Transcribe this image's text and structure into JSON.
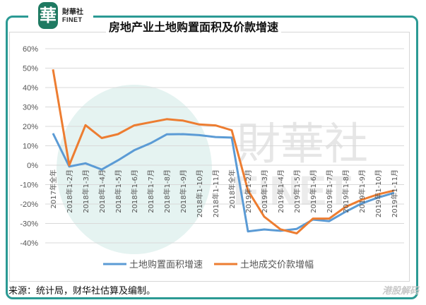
{
  "header": {
    "logo_glyph": "華",
    "brand_cn": "財華社",
    "brand_en": "FINET",
    "title": "房地产业土地购置面积及价款增速"
  },
  "footer": {
    "source": "来源：统计局，财华社估算及编制。",
    "corner_watermark": "港股解码"
  },
  "watermark": {
    "text_cn": "財華社",
    "text_en": "FINET"
  },
  "colors": {
    "frame": "#2b9a94",
    "series_blue": "#5b9bd5",
    "series_orange": "#ed7d31",
    "grid": "#d9d9d9"
  },
  "chart_data": {
    "type": "line",
    "title": "房地产业土地购置面积及价款增速",
    "xlabel": "",
    "ylabel": "",
    "ylim": [
      -40,
      60
    ],
    "yticks": [
      60,
      50,
      40,
      30,
      20,
      10,
      0,
      -10,
      -20,
      -30,
      -40
    ],
    "ytick_labels": [
      "60%",
      "50%",
      "40%",
      "30%",
      "20%",
      "10%",
      "0%",
      "-10%",
      "-20%",
      "-30%",
      "-40%"
    ],
    "grid": true,
    "legend_position": "bottom",
    "categories": [
      "2017年全年",
      "2018年1-2月",
      "2018年1-3月",
      "2018年1-4月",
      "2018年1-5月",
      "2018年1-6月",
      "2018年1-7月",
      "2018年1-8月",
      "2018年1-9月",
      "2018年1-10月",
      "2018年1-11月",
      "2018年全年",
      "2019年1-2月",
      "2019年1-3月",
      "2019年1-4月",
      "2019年1-5月",
      "2019年1-6月",
      "2019年1-7月",
      "2019年1-8月",
      "2019年1-9月",
      "2019年1-10月",
      "2019年1-11月"
    ],
    "series": [
      {
        "name": "土地购置面积增速",
        "color": "#5b9bd5",
        "values": [
          16.4,
          -0.7,
          1.0,
          -2.2,
          2.5,
          7.7,
          11.3,
          15.9,
          16.0,
          15.5,
          14.5,
          14.2,
          -34.1,
          -33.1,
          -33.8,
          -32.8,
          -28.0,
          -28.8,
          -24.0,
          -19.7,
          -16.7,
          -14.2
        ]
      },
      {
        "name": "土地成交价款增幅",
        "color": "#ed7d31",
        "values": [
          49.4,
          0.0,
          20.6,
          14.0,
          16.0,
          20.5,
          22.1,
          23.7,
          23.0,
          21.0,
          20.5,
          18.0,
          -13.0,
          -26.5,
          -33.0,
          -35.1,
          -27.5,
          -27.5,
          -21.5,
          -17.8,
          -15.0,
          -13.0
        ]
      }
    ]
  }
}
